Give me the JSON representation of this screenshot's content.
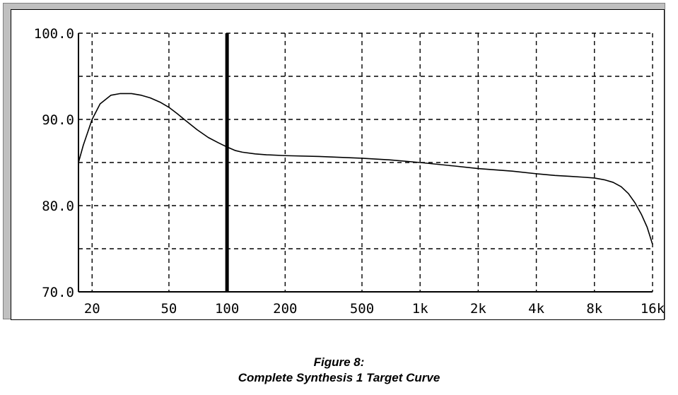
{
  "chart_data": {
    "type": "line",
    "title": "",
    "xlabel": "",
    "ylabel": "",
    "xscale": "log",
    "xlim": [
      17,
      16000
    ],
    "ylim": [
      70,
      100
    ],
    "x_ticks": [
      {
        "value": 20,
        "label": "20"
      },
      {
        "value": 50,
        "label": "50"
      },
      {
        "value": 100,
        "label": "100"
      },
      {
        "value": 200,
        "label": "200"
      },
      {
        "value": 500,
        "label": "500"
      },
      {
        "value": 1000,
        "label": "1k"
      },
      {
        "value": 2000,
        "label": "2k"
      },
      {
        "value": 4000,
        "label": "4k"
      },
      {
        "value": 8000,
        "label": "8k"
      },
      {
        "value": 16000,
        "label": "16k"
      }
    ],
    "y_ticks": [
      {
        "value": 70,
        "label": "70.0"
      },
      {
        "value": 80,
        "label": "80.0"
      },
      {
        "value": 90,
        "label": "90.0"
      },
      {
        "value": 100,
        "label": "100.0"
      }
    ],
    "grid": true,
    "marker_line_x": 100,
    "series": [
      {
        "x": [
          17,
          18,
          20,
          22,
          25,
          28,
          32,
          36,
          40,
          45,
          50,
          55,
          60,
          70,
          80,
          90,
          100,
          110,
          120,
          140,
          160,
          200,
          300,
          500,
          700,
          1000,
          1500,
          2000,
          3000,
          4000,
          5000,
          6000,
          7000,
          8000,
          9000,
          10000,
          11000,
          12000,
          13000,
          14000,
          15000,
          16000
        ],
        "y": [
          85.0,
          87.0,
          90.0,
          91.8,
          92.8,
          93.0,
          93.0,
          92.8,
          92.5,
          92.0,
          91.4,
          90.7,
          90.0,
          88.8,
          87.9,
          87.3,
          86.8,
          86.4,
          86.2,
          86.0,
          85.9,
          85.8,
          85.7,
          85.5,
          85.3,
          85.0,
          84.6,
          84.3,
          84.0,
          83.7,
          83.5,
          83.4,
          83.3,
          83.2,
          83.0,
          82.7,
          82.2,
          81.4,
          80.3,
          79.0,
          77.5,
          75.5
        ],
        "color": "#000000"
      }
    ]
  },
  "caption": {
    "line1": "Figure 8:",
    "line2": "Complete Synthesis 1 Target Curve"
  }
}
